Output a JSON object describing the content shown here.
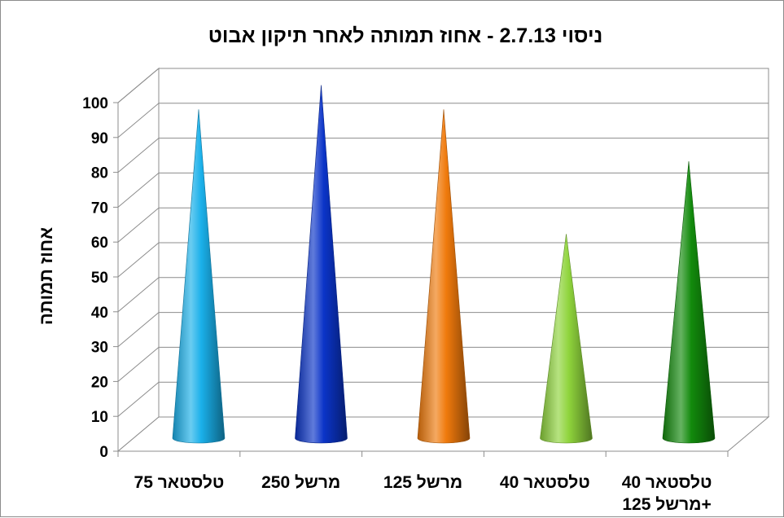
{
  "chart_data": {
    "type": "bar",
    "style": "3d-cone",
    "title": "ניסוי 2.7.13 - אחוז תמותה לאחר תיקון אבוט",
    "xlabel": "",
    "ylabel": "אחוז תמותה",
    "ylim": [
      0,
      100
    ],
    "yticks": [
      "0",
      "10",
      "20",
      "30",
      "40",
      "50",
      "60",
      "70",
      "80",
      "90",
      "100"
    ],
    "grid": true,
    "legend": "none",
    "categories": [
      [
        "טלסטאר 75"
      ],
      [
        "מרשל 250"
      ],
      [
        "מרשל 125"
      ],
      [
        "טלסטאר 40"
      ],
      [
        "טלסטאר 40",
        "+מרשל 125"
      ]
    ],
    "values": [
      95,
      102,
      95,
      59,
      80
    ],
    "colors": [
      "#1ab0ea",
      "#0b34c8",
      "#f07a0c",
      "#8fd43c",
      "#128a0c"
    ]
  }
}
